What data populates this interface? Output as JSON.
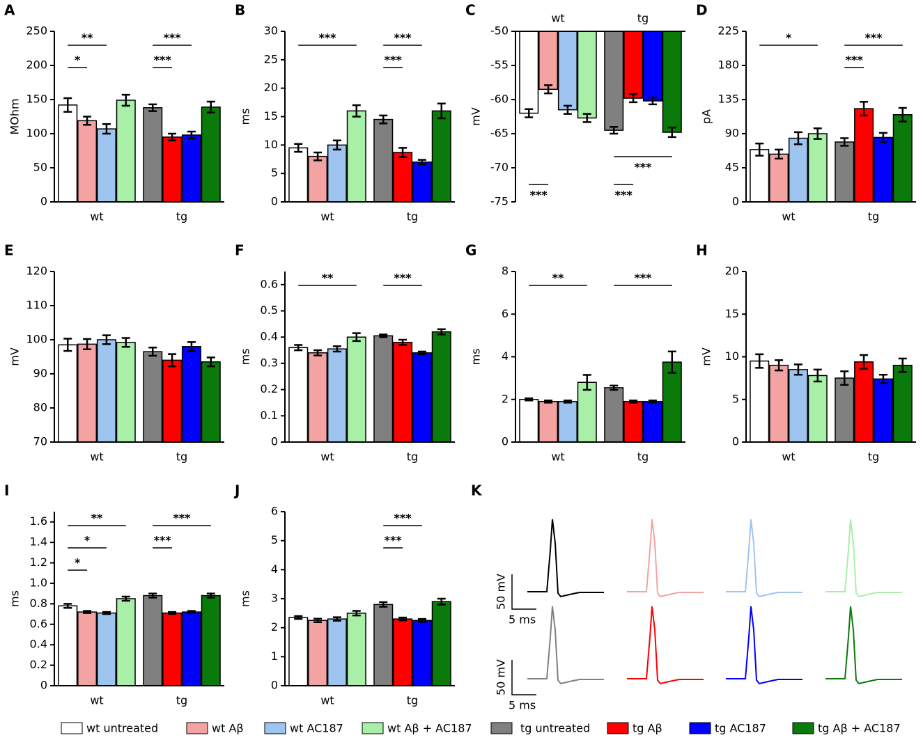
{
  "chart_data": [
    {
      "type": "bar",
      "label": "A",
      "y_label": "MOhm",
      "ylim": [
        0,
        250
      ],
      "yticks": [
        0,
        50,
        100,
        150,
        200,
        250
      ],
      "groups": [
        {
          "category": "wt",
          "values": [
            142,
            119,
            107,
            149
          ],
          "errors": [
            10,
            6,
            7,
            8
          ]
        },
        {
          "category": "tg",
          "values": [
            138,
            95,
            98,
            139
          ],
          "errors": [
            5,
            5,
            5,
            8
          ]
        }
      ],
      "annotations": [
        {
          "text": "*",
          "group": 0,
          "between": [
            0,
            1
          ]
        },
        {
          "text": "**",
          "group": 0,
          "between": [
            0,
            2
          ]
        },
        {
          "text": "***",
          "group": 1,
          "between": [
            0,
            1
          ]
        },
        {
          "text": "***",
          "group": 1,
          "between": [
            0,
            2
          ]
        }
      ]
    },
    {
      "type": "bar",
      "label": "B",
      "y_label": "ms",
      "ylim": [
        0,
        30
      ],
      "yticks": [
        0,
        5,
        10,
        15,
        20,
        25,
        30
      ],
      "groups": [
        {
          "category": "wt",
          "values": [
            9.5,
            8,
            10,
            16
          ],
          "errors": [
            0.7,
            0.7,
            0.8,
            1
          ]
        },
        {
          "category": "tg",
          "values": [
            14.5,
            8.7,
            7,
            16
          ],
          "errors": [
            0.7,
            0.8,
            0.4,
            1.3
          ]
        }
      ],
      "annotations": [
        {
          "text": "***",
          "group": 0,
          "between": [
            0,
            3
          ]
        },
        {
          "text": "***",
          "group": 1,
          "between": [
            0,
            1
          ]
        },
        {
          "text": "***",
          "group": 1,
          "between": [
            0,
            2
          ]
        }
      ]
    },
    {
      "type": "bar",
      "label": "C",
      "y_label": "mV",
      "ylim": [
        -75,
        -50
      ],
      "yticks": [
        -75,
        -70,
        -65,
        -60,
        -55,
        -50
      ],
      "groups": [
        {
          "category": "wt",
          "values": [
            -62,
            -58.5,
            -61.5,
            -62.7
          ],
          "errors": [
            0.6,
            0.6,
            0.6,
            0.6
          ]
        },
        {
          "category": "tg",
          "values": [
            -64.5,
            -59.8,
            -60.2,
            -64.8
          ],
          "errors": [
            0.5,
            0.6,
            0.5,
            0.7
          ]
        }
      ],
      "annotations": [
        {
          "text": "***",
          "group": 0,
          "between": [
            0,
            1
          ]
        },
        {
          "text": "***",
          "group": 1,
          "between": [
            0,
            1
          ]
        },
        {
          "text": "***",
          "group": 1,
          "between": [
            0,
            3
          ]
        }
      ]
    },
    {
      "type": "bar",
      "label": "D",
      "y_label": "pA",
      "ylim": [
        0,
        225
      ],
      "yticks": [
        0,
        45,
        90,
        135,
        180,
        225
      ],
      "groups": [
        {
          "category": "wt",
          "values": [
            69,
            63,
            84,
            90
          ],
          "errors": [
            8,
            6,
            8,
            7
          ]
        },
        {
          "category": "tg",
          "values": [
            79,
            123,
            85,
            115
          ],
          "errors": [
            5,
            9,
            6,
            9
          ]
        }
      ],
      "annotations": [
        {
          "text": "*",
          "group": 0,
          "between": [
            0,
            3
          ]
        },
        {
          "text": "***",
          "group": 1,
          "between": [
            0,
            1
          ]
        },
        {
          "text": "***",
          "group": 1,
          "between": [
            0,
            3
          ]
        }
      ]
    },
    {
      "type": "bar",
      "label": "E",
      "y_label": "mV",
      "ylim": [
        70,
        120
      ],
      "yticks": [
        70,
        80,
        90,
        100,
        110,
        120
      ],
      "groups": [
        {
          "category": "wt",
          "values": [
            98.5,
            98.7,
            100,
            99.2
          ],
          "errors": [
            1.8,
            1.5,
            1.3,
            1.3
          ]
        },
        {
          "category": "tg",
          "values": [
            96.5,
            94,
            98,
            93.5
          ],
          "errors": [
            1.2,
            1.8,
            1.3,
            1.3
          ]
        }
      ],
      "annotations": []
    },
    {
      "type": "bar",
      "label": "F",
      "y_label": "ms",
      "ylim": [
        0,
        0.65
      ],
      "yticks": [
        0,
        0.1,
        0.2,
        0.3,
        0.4,
        0.5,
        0.6
      ],
      "groups": [
        {
          "category": "wt",
          "values": [
            0.36,
            0.34,
            0.355,
            0.4
          ],
          "errors": [
            0.01,
            0.01,
            0.01,
            0.015
          ]
        },
        {
          "category": "tg",
          "values": [
            0.405,
            0.38,
            0.34,
            0.42
          ],
          "errors": [
            0.005,
            0.01,
            0.005,
            0.01
          ]
        }
      ],
      "annotations": [
        {
          "text": "**",
          "group": 0,
          "between": [
            0,
            3
          ]
        },
        {
          "text": "***",
          "group": 1,
          "between": [
            0,
            2
          ]
        }
      ]
    },
    {
      "type": "bar",
      "label": "G",
      "y_label": "ms",
      "ylim": [
        0,
        8
      ],
      "yticks": [
        0,
        2,
        4,
        6,
        8
      ],
      "groups": [
        {
          "category": "wt",
          "values": [
            2,
            1.9,
            1.9,
            2.8
          ],
          "errors": [
            0.05,
            0.05,
            0.05,
            0.35
          ]
        },
        {
          "category": "tg",
          "values": [
            2.55,
            1.9,
            1.9,
            3.75
          ],
          "errors": [
            0.1,
            0.05,
            0.05,
            0.5
          ]
        }
      ],
      "annotations": [
        {
          "text": "**",
          "group": 0,
          "between": [
            0,
            3
          ]
        },
        {
          "text": "***",
          "group": 1,
          "between": [
            0,
            3
          ]
        }
      ]
    },
    {
      "type": "bar",
      "label": "H",
      "y_label": "mV",
      "ylim": [
        0,
        20
      ],
      "yticks": [
        0,
        5,
        10,
        15,
        20
      ],
      "groups": [
        {
          "category": "wt",
          "values": [
            9.5,
            9,
            8.5,
            7.8
          ],
          "errors": [
            0.8,
            0.6,
            0.6,
            0.7
          ]
        },
        {
          "category": "tg",
          "values": [
            7.5,
            9.4,
            7.4,
            9
          ],
          "errors": [
            0.8,
            0.8,
            0.5,
            0.8
          ]
        }
      ],
      "annotations": []
    },
    {
      "type": "bar",
      "label": "I",
      "y_label": "ms",
      "ylim": [
        0,
        1.7
      ],
      "yticks": [
        0,
        0.2,
        0.4,
        0.6,
        0.8,
        {
          "value": 1,
          "label": "1.0"
        },
        1.2,
        1.4,
        1.6
      ],
      "groups": [
        {
          "category": "wt",
          "values": [
            0.78,
            0.72,
            0.71,
            0.85
          ],
          "errors": [
            0.02,
            0.01,
            0.01,
            0.02
          ]
        },
        {
          "category": "tg",
          "values": [
            0.88,
            0.71,
            0.72,
            0.88
          ],
          "errors": [
            0.02,
            0.01,
            0.01,
            0.02
          ]
        }
      ],
      "annotations": [
        {
          "text": "*",
          "group": 0,
          "between": [
            0,
            1
          ]
        },
        {
          "text": "*",
          "group": 0,
          "between": [
            0,
            2
          ]
        },
        {
          "text": "**",
          "group": 0,
          "between": [
            0,
            3
          ]
        },
        {
          "text": "***",
          "group": 1,
          "between": [
            0,
            1
          ]
        },
        {
          "text": "***",
          "group": 1,
          "between": [
            0,
            3
          ]
        }
      ]
    },
    {
      "type": "bar",
      "label": "J",
      "y_label": "ms",
      "ylim": [
        0,
        6
      ],
      "yticks": [
        0,
        1,
        2,
        3,
        4,
        5,
        6
      ],
      "groups": [
        {
          "category": "wt",
          "values": [
            2.35,
            2.25,
            2.3,
            2.5
          ],
          "errors": [
            0.05,
            0.06,
            0.06,
            0.08
          ]
        },
        {
          "category": "tg",
          "values": [
            2.8,
            2.3,
            2.25,
            2.9
          ],
          "errors": [
            0.08,
            0.05,
            0.05,
            0.1
          ]
        }
      ],
      "annotations": [
        {
          "text": "***",
          "group": 1,
          "between": [
            0,
            1
          ]
        },
        {
          "text": "***",
          "group": 1,
          "between": [
            0,
            2
          ]
        }
      ]
    }
  ],
  "panel_k": {
    "label": "K",
    "scale_bars": [
      {
        "y_label": "50 mV",
        "x_label": "5 ms"
      },
      {
        "y_label": "50 mV",
        "x_label": "5 ms"
      }
    ]
  },
  "legend": [
    {
      "name": "wt untreated",
      "color": "#ffffff"
    },
    {
      "name": "wt Aβ",
      "color": "#f4a3a3"
    },
    {
      "name": "wt AC187",
      "color": "#9ec4f0"
    },
    {
      "name": "wt Aβ + AC187",
      "color": "#a8f0a8"
    },
    {
      "name": "tg untreated",
      "color": "#808080"
    },
    {
      "name": "tg Aβ",
      "color": "#ff0000"
    },
    {
      "name": "tg AC187",
      "color": "#0000ff"
    },
    {
      "name": "tg Aβ + AC187",
      "color": "#0a7a0a"
    }
  ]
}
